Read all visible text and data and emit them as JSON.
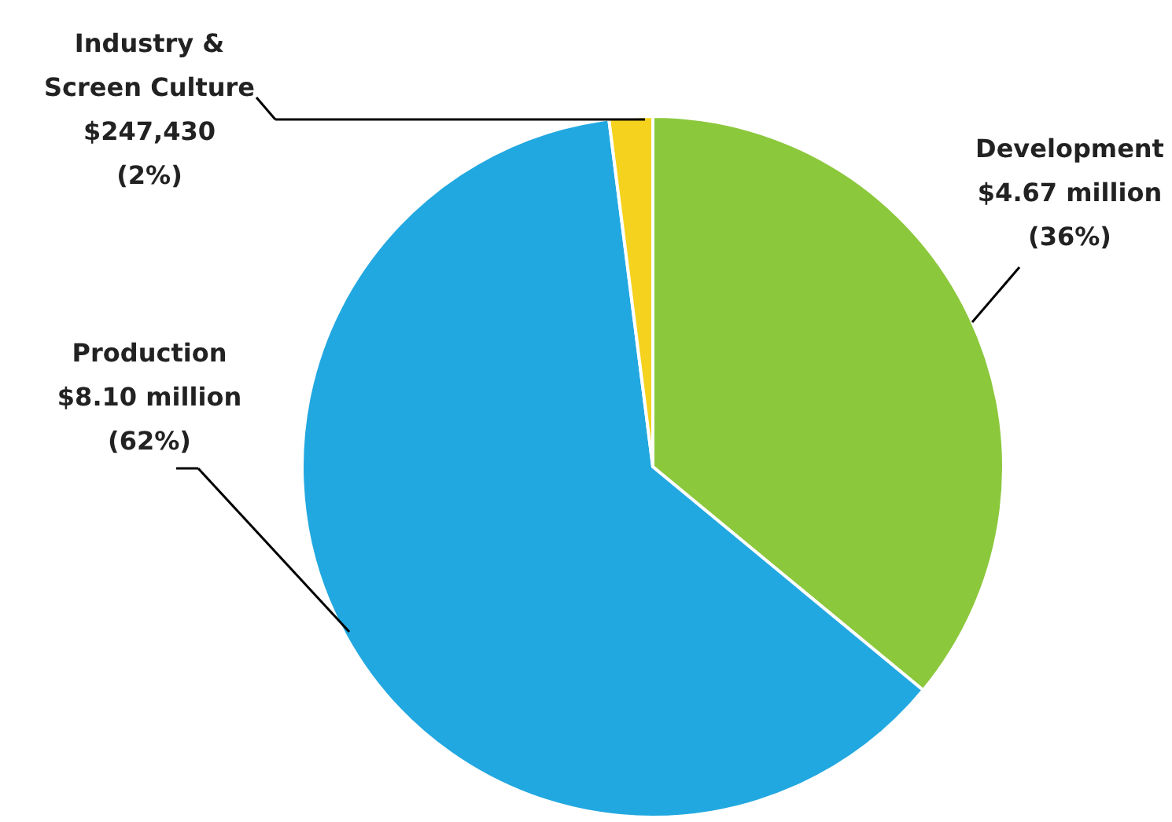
{
  "chart_data": {
    "type": "pie",
    "categories": [
      "Development",
      "Production",
      "Industry & Screen Culture"
    ],
    "values": [
      36,
      62,
      2
    ],
    "value_labels": [
      "$4.67 million (36%)",
      "$8.10 million (62%)",
      "$247,430 (2%)"
    ],
    "colors": [
      "#8cc83c",
      "#22a8e0",
      "#f5d21e"
    ]
  }
}
